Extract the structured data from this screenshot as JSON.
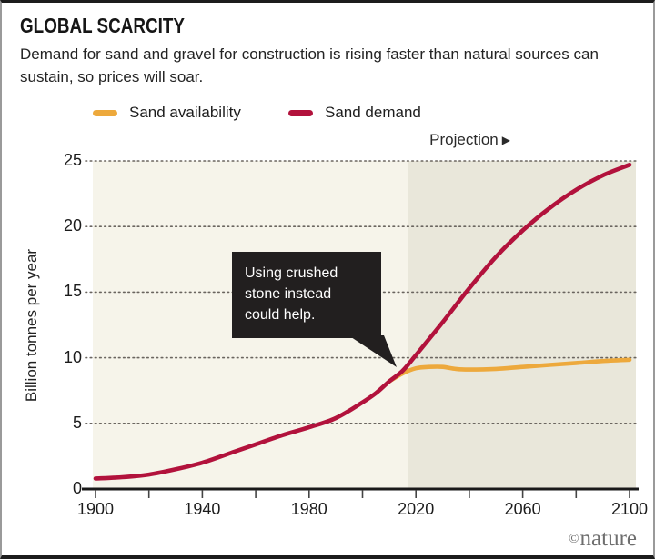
{
  "header": {
    "title": "GLOBAL SCARCITY",
    "subtitle": "Demand for sand and gravel for construction is rising faster than natural sources can sustain, so prices will soar."
  },
  "credit": {
    "symbol": "©",
    "name": "nature"
  },
  "colors": {
    "availability": "#eda93c",
    "demand": "#b2123c",
    "plot_bg": "#f6f4ea",
    "projection_bg": "#e9e7da",
    "callout_bg": "#221f1f",
    "callout_text": "#ffffff",
    "grid": "#6a655f",
    "axis": "#1a1a1a",
    "tick": "#444444"
  },
  "chart_data": {
    "type": "line",
    "title": "GLOBAL SCARCITY",
    "xlabel": "",
    "ylabel": "Billion tonnes per year",
    "xlim": [
      1900,
      2100
    ],
    "ylim": [
      0,
      25
    ],
    "x_tick_step": 20,
    "x_tick_labels": [
      "1900",
      "1940",
      "1980",
      "2020",
      "2060",
      "2100"
    ],
    "x_tick_label_years": [
      1900,
      1940,
      1980,
      2020,
      2060,
      2100
    ],
    "y_ticks": [
      0,
      5,
      10,
      15,
      20,
      25
    ],
    "grid": "dotted-horizontal",
    "legend_position": "top",
    "projection_start": 2017,
    "series": [
      {
        "name": "Sand availability",
        "color": "#eda93c",
        "x": [
          2010,
          2015,
          2020,
          2025,
          2030,
          2035,
          2040,
          2050,
          2060,
          2070,
          2080,
          2090,
          2100
        ],
        "y": [
          8.2,
          8.8,
          9.2,
          9.3,
          9.3,
          9.15,
          9.1,
          9.15,
          9.3,
          9.45,
          9.6,
          9.75,
          9.85
        ]
      },
      {
        "name": "Sand demand",
        "color": "#b2123c",
        "x": [
          1900,
          1910,
          1920,
          1930,
          1940,
          1950,
          1960,
          1970,
          1980,
          1990,
          2000,
          2005,
          2010,
          2015,
          2020,
          2030,
          2040,
          2050,
          2060,
          2070,
          2080,
          2090,
          2100
        ],
        "y": [
          0.8,
          0.9,
          1.1,
          1.5,
          2.0,
          2.7,
          3.4,
          4.1,
          4.7,
          5.4,
          6.6,
          7.3,
          8.2,
          9.0,
          10.2,
          12.7,
          15.3,
          17.7,
          19.7,
          21.4,
          22.8,
          23.9,
          24.7
        ]
      }
    ],
    "annotations": {
      "callout": {
        "text": "Using crushed stone instead could help."
      },
      "projection": {
        "label": "Projection",
        "arrow": "▶"
      }
    }
  }
}
